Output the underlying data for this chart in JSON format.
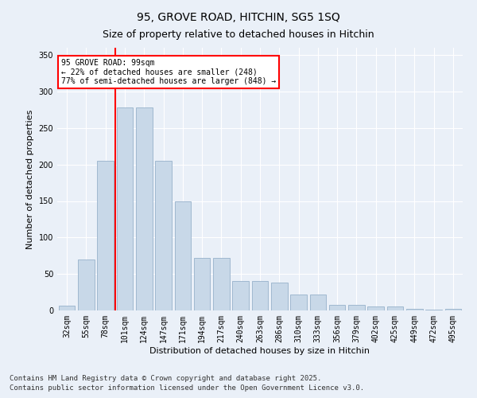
{
  "title1": "95, GROVE ROAD, HITCHIN, SG5 1SQ",
  "title2": "Size of property relative to detached houses in Hitchin",
  "xlabel": "Distribution of detached houses by size in Hitchin",
  "ylabel": "Number of detached properties",
  "categories": [
    "32sqm",
    "55sqm",
    "78sqm",
    "101sqm",
    "124sqm",
    "147sqm",
    "171sqm",
    "194sqm",
    "217sqm",
    "240sqm",
    "263sqm",
    "286sqm",
    "310sqm",
    "333sqm",
    "356sqm",
    "379sqm",
    "402sqm",
    "425sqm",
    "449sqm",
    "472sqm",
    "495sqm"
  ],
  "values": [
    7,
    70,
    205,
    278,
    278,
    205,
    150,
    72,
    72,
    40,
    40,
    38,
    22,
    22,
    8,
    8,
    6,
    5,
    2,
    1,
    2
  ],
  "bar_color": "#c8d8e8",
  "bar_edgecolor": "#a0b8d0",
  "vline_color": "red",
  "annotation_text": "95 GROVE ROAD: 99sqm\n← 22% of detached houses are smaller (248)\n77% of semi-detached houses are larger (848) →",
  "annotation_box_color": "white",
  "annotation_box_edgecolor": "red",
  "ylim": [
    0,
    360
  ],
  "yticks": [
    0,
    50,
    100,
    150,
    200,
    250,
    300,
    350
  ],
  "background_color": "#eaf0f8",
  "plot_background": "#eaf0f8",
  "footer1": "Contains HM Land Registry data © Crown copyright and database right 2025.",
  "footer2": "Contains public sector information licensed under the Open Government Licence v3.0.",
  "title_fontsize": 10,
  "subtitle_fontsize": 9,
  "axis_fontsize": 8,
  "tick_fontsize": 7,
  "footer_fontsize": 6.5
}
